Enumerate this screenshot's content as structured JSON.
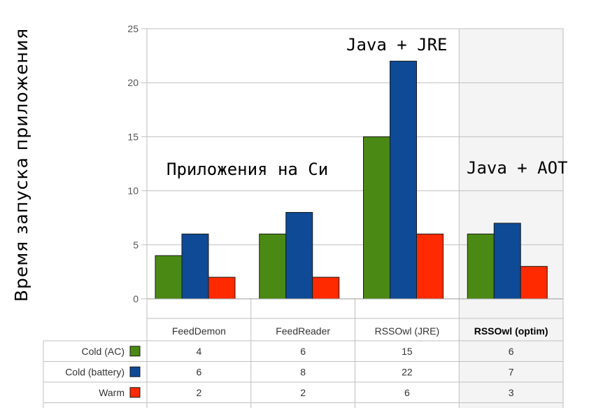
{
  "colors": {
    "cold_ac": "#4a8a14",
    "cold_battery": "#0e4a95",
    "warm": "#ff2a00",
    "grid": "#bfbfbf",
    "highlight_bg": "#f4f4f4"
  },
  "annotations": {
    "c_apps": "Приложения на Си",
    "java_jre": "Java + JRE",
    "java_aot": "Java + AOT"
  },
  "chart_data": {
    "type": "bar",
    "title": "",
    "xlabel": "",
    "ylabel": "Время запуска приложения",
    "ylim": [
      0,
      25
    ],
    "yticks": [
      "0",
      "5",
      "10",
      "15",
      "20",
      "25"
    ],
    "categories": [
      "FeedDemon",
      "FeedReader",
      "RSSOwl (JRE)",
      "RSSOwl (optim)"
    ],
    "highlighted_category": "RSSOwl (optim)",
    "series": [
      {
        "name": "Cold (AC)",
        "color": "#4a8a14",
        "values": [
          4,
          6,
          15,
          6
        ]
      },
      {
        "name": "Cold (battery)",
        "color": "#0e4a95",
        "values": [
          6,
          8,
          22,
          7
        ]
      },
      {
        "name": "Warm",
        "color": "#ff2a00",
        "values": [
          2,
          2,
          6,
          3
        ]
      }
    ],
    "table": {
      "cells": [
        [
          "4",
          "6",
          "15",
          "6"
        ],
        [
          "6",
          "8",
          "22",
          "7"
        ],
        [
          "2",
          "2",
          "6",
          "3"
        ]
      ]
    },
    "grid": true,
    "legend": "data-table rows"
  }
}
